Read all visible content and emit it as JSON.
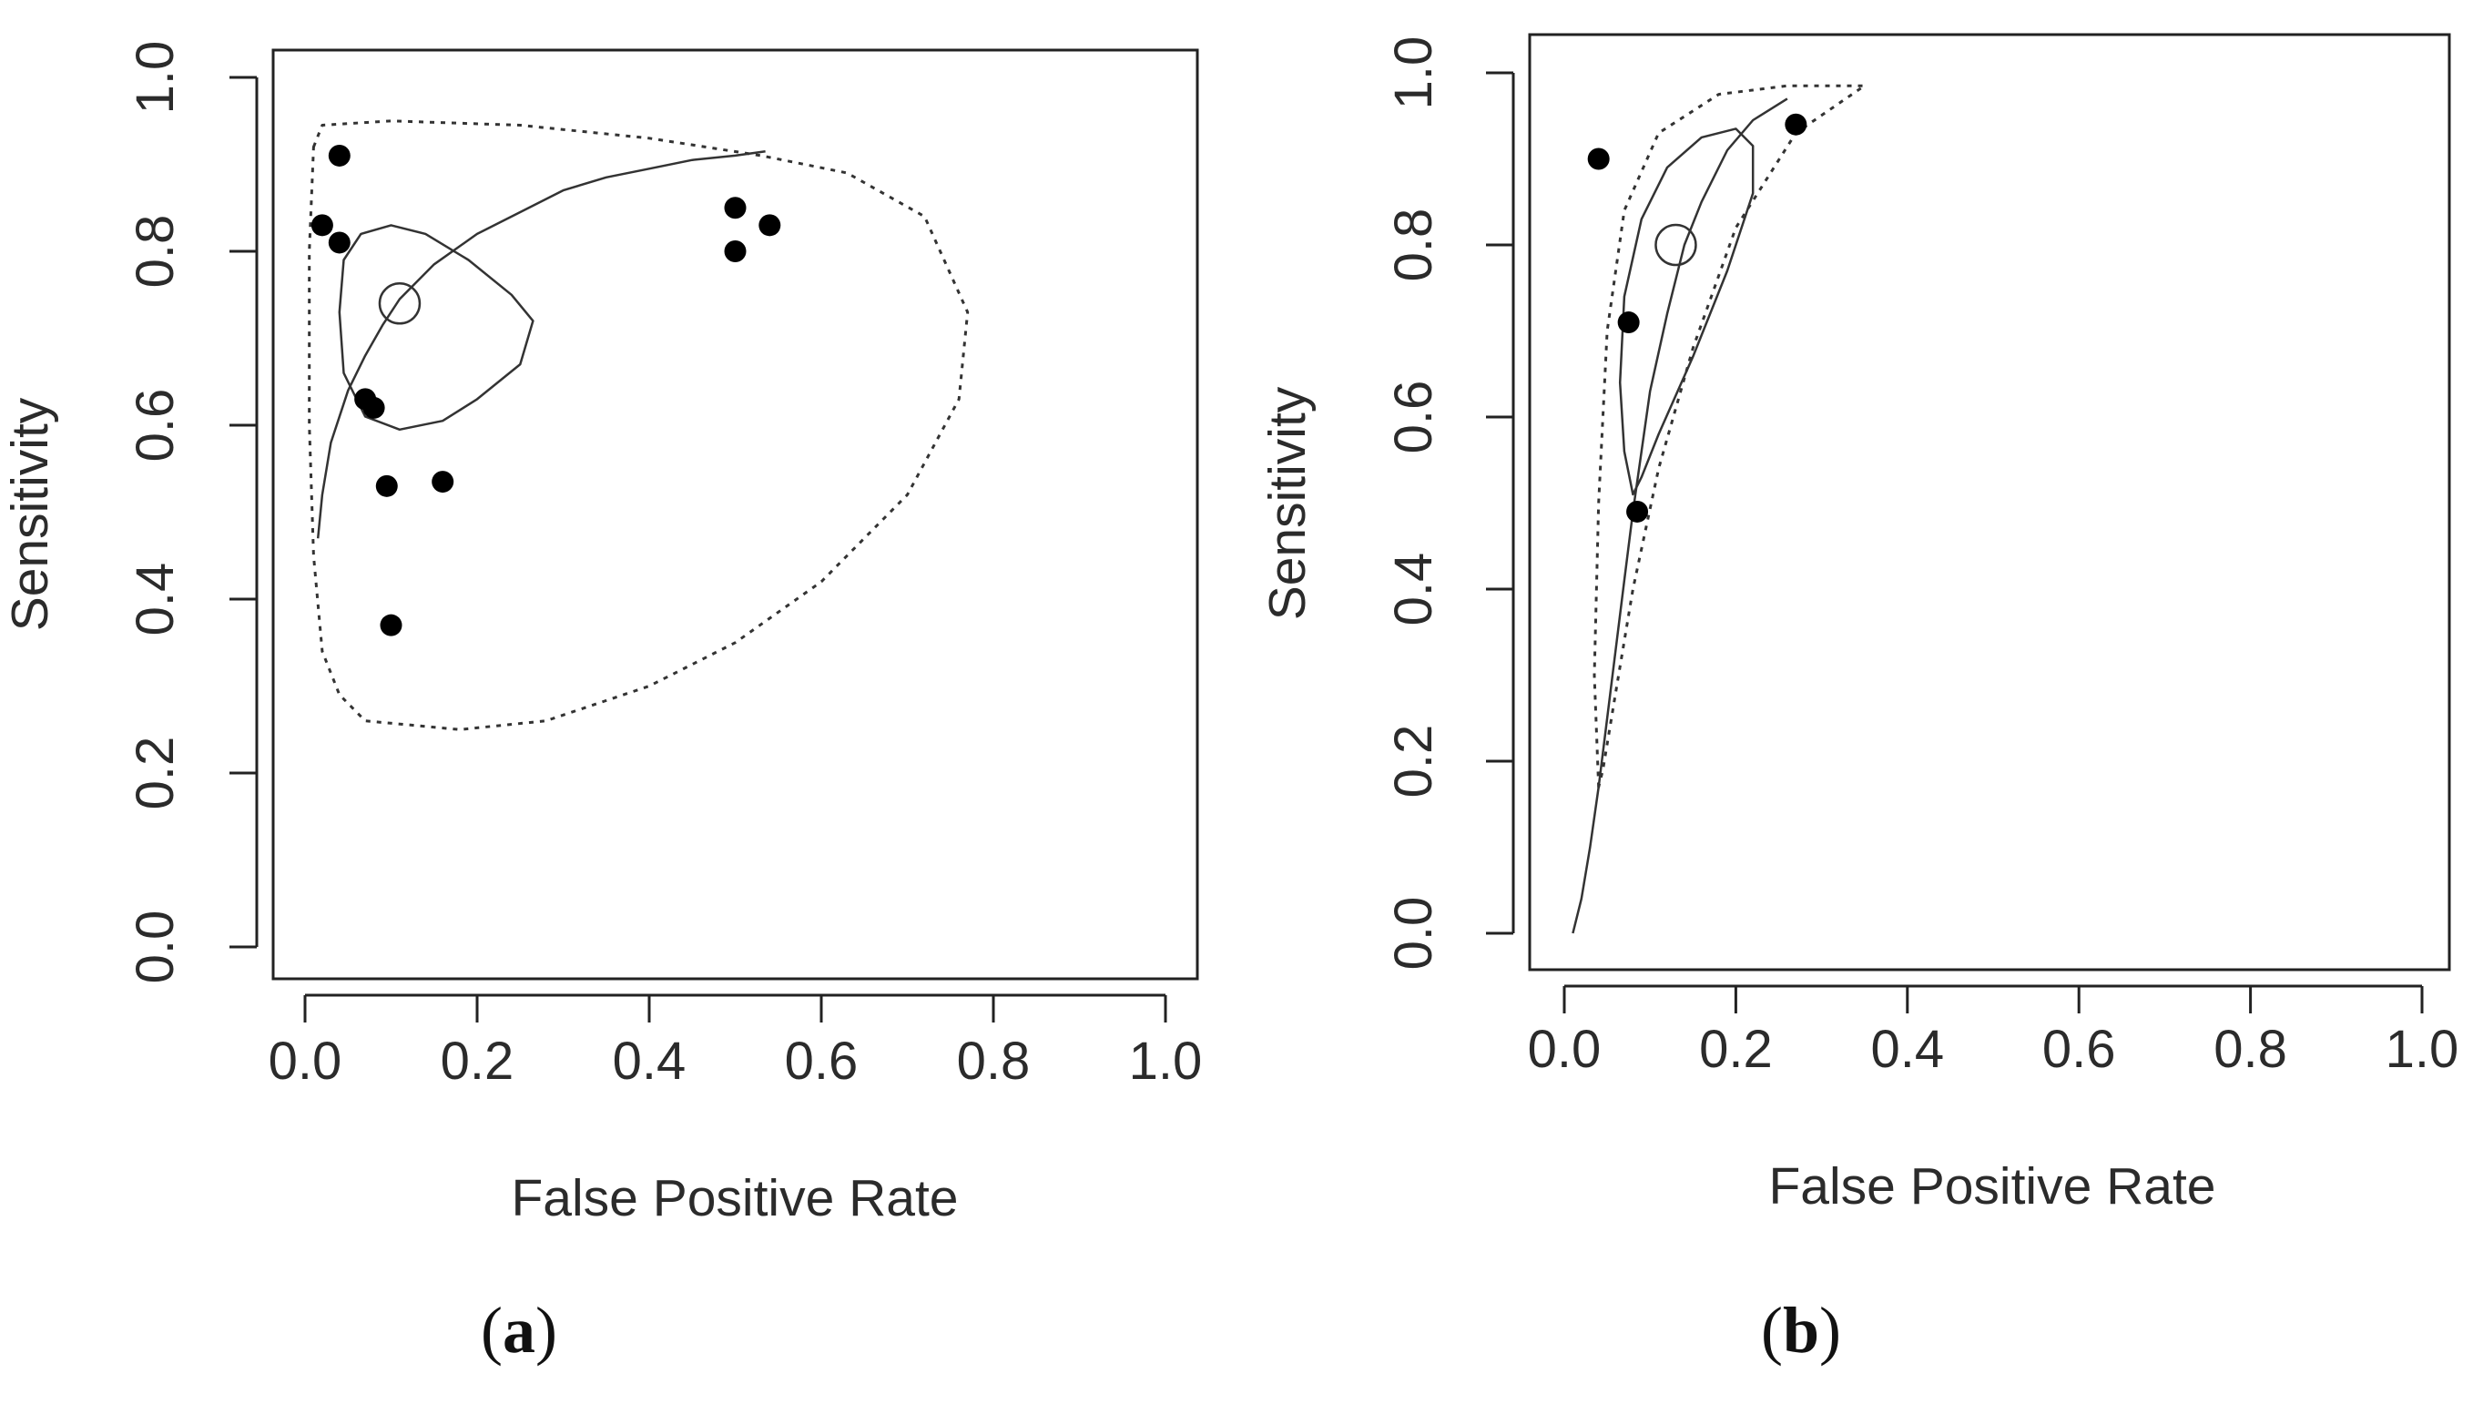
{
  "chart_data": [
    {
      "type": "scatter",
      "panel_label": "a",
      "xlabel": "False Positive Rate",
      "ylabel": "Sensitivity",
      "xlim": [
        0,
        1
      ],
      "ylim": [
        0,
        1
      ],
      "xticks": [
        "0.0",
        "0.2",
        "0.4",
        "0.6",
        "0.8",
        "1.0"
      ],
      "yticks": [
        "0.0",
        "0.2",
        "0.4",
        "0.6",
        "0.8",
        "1.0"
      ],
      "points": [
        [
          0.04,
          0.91
        ],
        [
          0.02,
          0.83
        ],
        [
          0.04,
          0.81
        ],
        [
          0.5,
          0.85
        ],
        [
          0.54,
          0.83
        ],
        [
          0.5,
          0.8
        ],
        [
          0.07,
          0.63
        ],
        [
          0.08,
          0.62
        ],
        [
          0.095,
          0.53
        ],
        [
          0.16,
          0.535
        ],
        [
          0.1,
          0.37
        ]
      ],
      "summary_point": [
        0.11,
        0.74
      ],
      "sroc_curve": [
        [
          0.015,
          0.47
        ],
        [
          0.02,
          0.52
        ],
        [
          0.03,
          0.58
        ],
        [
          0.05,
          0.64
        ],
        [
          0.07,
          0.68
        ],
        [
          0.09,
          0.715
        ],
        [
          0.11,
          0.745
        ],
        [
          0.15,
          0.785
        ],
        [
          0.2,
          0.82
        ],
        [
          0.25,
          0.845
        ],
        [
          0.3,
          0.87
        ],
        [
          0.35,
          0.885
        ],
        [
          0.4,
          0.895
        ],
        [
          0.45,
          0.905
        ],
        [
          0.5,
          0.91
        ],
        [
          0.535,
          0.915
        ]
      ],
      "confidence_region": [
        [
          0.045,
          0.79
        ],
        [
          0.065,
          0.82
        ],
        [
          0.1,
          0.83
        ],
        [
          0.14,
          0.82
        ],
        [
          0.19,
          0.79
        ],
        [
          0.24,
          0.75
        ],
        [
          0.265,
          0.72
        ],
        [
          0.25,
          0.67
        ],
        [
          0.2,
          0.63
        ],
        [
          0.16,
          0.605
        ],
        [
          0.11,
          0.595
        ],
        [
          0.07,
          0.61
        ],
        [
          0.045,
          0.66
        ],
        [
          0.04,
          0.73
        ],
        [
          0.045,
          0.79
        ]
      ],
      "prediction_region": [
        [
          0.01,
          0.92
        ],
        [
          0.02,
          0.945
        ],
        [
          0.1,
          0.95
        ],
        [
          0.25,
          0.945
        ],
        [
          0.4,
          0.93
        ],
        [
          0.53,
          0.91
        ],
        [
          0.63,
          0.89
        ],
        [
          0.72,
          0.84
        ],
        [
          0.77,
          0.73
        ],
        [
          0.76,
          0.63
        ],
        [
          0.7,
          0.52
        ],
        [
          0.6,
          0.42
        ],
        [
          0.5,
          0.35
        ],
        [
          0.4,
          0.3
        ],
        [
          0.28,
          0.26
        ],
        [
          0.18,
          0.25
        ],
        [
          0.07,
          0.26
        ],
        [
          0.04,
          0.29
        ],
        [
          0.02,
          0.34
        ],
        [
          0.01,
          0.45
        ],
        [
          0.005,
          0.6
        ],
        [
          0.005,
          0.8
        ],
        [
          0.01,
          0.92
        ]
      ]
    },
    {
      "type": "scatter",
      "panel_label": "b",
      "xlabel": "False Positive Rate",
      "ylabel": "Sensitivity",
      "xlim": [
        0,
        1
      ],
      "ylim": [
        0,
        1
      ],
      "xticks": [
        "0.0",
        "0.2",
        "0.4",
        "0.6",
        "0.8",
        "1.0"
      ],
      "yticks": [
        "0.0",
        "0.2",
        "0.4",
        "0.6",
        "0.8",
        "1.0"
      ],
      "points": [
        [
          0.04,
          0.9
        ],
        [
          0.27,
          0.94
        ],
        [
          0.075,
          0.71
        ],
        [
          0.085,
          0.49
        ]
      ],
      "summary_point": [
        0.13,
        0.8
      ],
      "sroc_curve": [
        [
          0.01,
          0.0
        ],
        [
          0.02,
          0.04
        ],
        [
          0.03,
          0.1
        ],
        [
          0.04,
          0.17
        ],
        [
          0.05,
          0.25
        ],
        [
          0.06,
          0.33
        ],
        [
          0.07,
          0.41
        ],
        [
          0.08,
          0.49
        ],
        [
          0.09,
          0.56
        ],
        [
          0.1,
          0.63
        ],
        [
          0.12,
          0.72
        ],
        [
          0.14,
          0.8
        ],
        [
          0.16,
          0.85
        ],
        [
          0.19,
          0.91
        ],
        [
          0.22,
          0.945
        ],
        [
          0.26,
          0.97
        ]
      ],
      "confidence_region": [
        [
          0.08,
          0.51
        ],
        [
          0.07,
          0.56
        ],
        [
          0.065,
          0.64
        ],
        [
          0.07,
          0.74
        ],
        [
          0.09,
          0.83
        ],
        [
          0.12,
          0.89
        ],
        [
          0.16,
          0.925
        ],
        [
          0.2,
          0.935
        ],
        [
          0.22,
          0.915
        ],
        [
          0.22,
          0.86
        ],
        [
          0.19,
          0.77
        ],
        [
          0.15,
          0.67
        ],
        [
          0.11,
          0.58
        ],
        [
          0.09,
          0.53
        ],
        [
          0.08,
          0.51
        ]
      ],
      "prediction_region": [
        [
          0.04,
          0.17
        ],
        [
          0.035,
          0.3
        ],
        [
          0.04,
          0.5
        ],
        [
          0.05,
          0.7
        ],
        [
          0.07,
          0.84
        ],
        [
          0.11,
          0.93
        ],
        [
          0.18,
          0.975
        ],
        [
          0.26,
          0.985
        ],
        [
          0.35,
          0.985
        ],
        [
          0.27,
          0.93
        ],
        [
          0.2,
          0.82
        ],
        [
          0.15,
          0.68
        ],
        [
          0.11,
          0.54
        ],
        [
          0.08,
          0.4
        ],
        [
          0.06,
          0.28
        ],
        [
          0.045,
          0.19
        ],
        [
          0.04,
          0.17
        ]
      ]
    }
  ]
}
